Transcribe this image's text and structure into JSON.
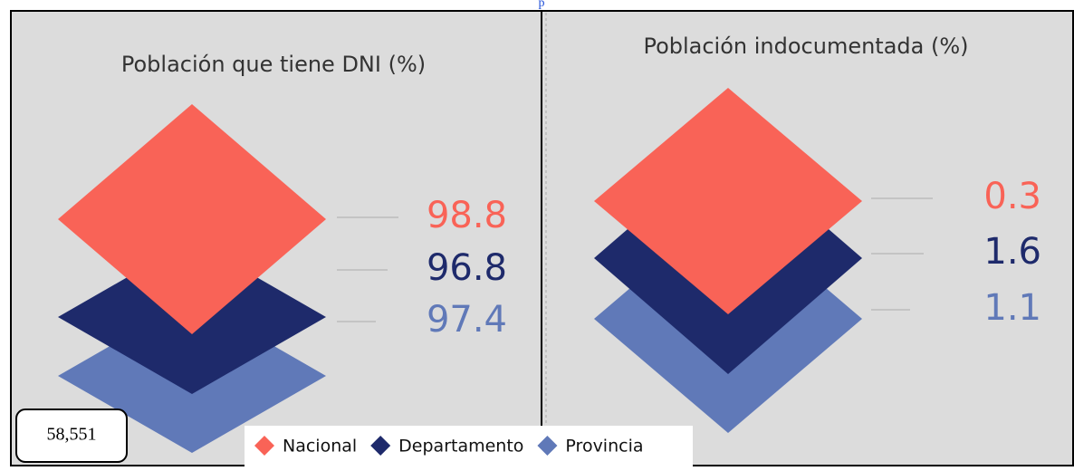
{
  "top_text": "p",
  "panels": [
    {
      "title": "Población que tiene DNI (%)",
      "values": [
        98.8,
        96.8,
        97.4
      ]
    },
    {
      "title": "Población indocumentada (%)",
      "values": [
        0.3,
        1.6,
        1.1
      ]
    }
  ],
  "legend": [
    {
      "name": "Nacional",
      "color": "#f96357"
    },
    {
      "name": "Departamento",
      "color": "#1e2a6b"
    },
    {
      "name": "Provincia",
      "color": "#6079b8"
    }
  ],
  "badge": "58,551"
}
